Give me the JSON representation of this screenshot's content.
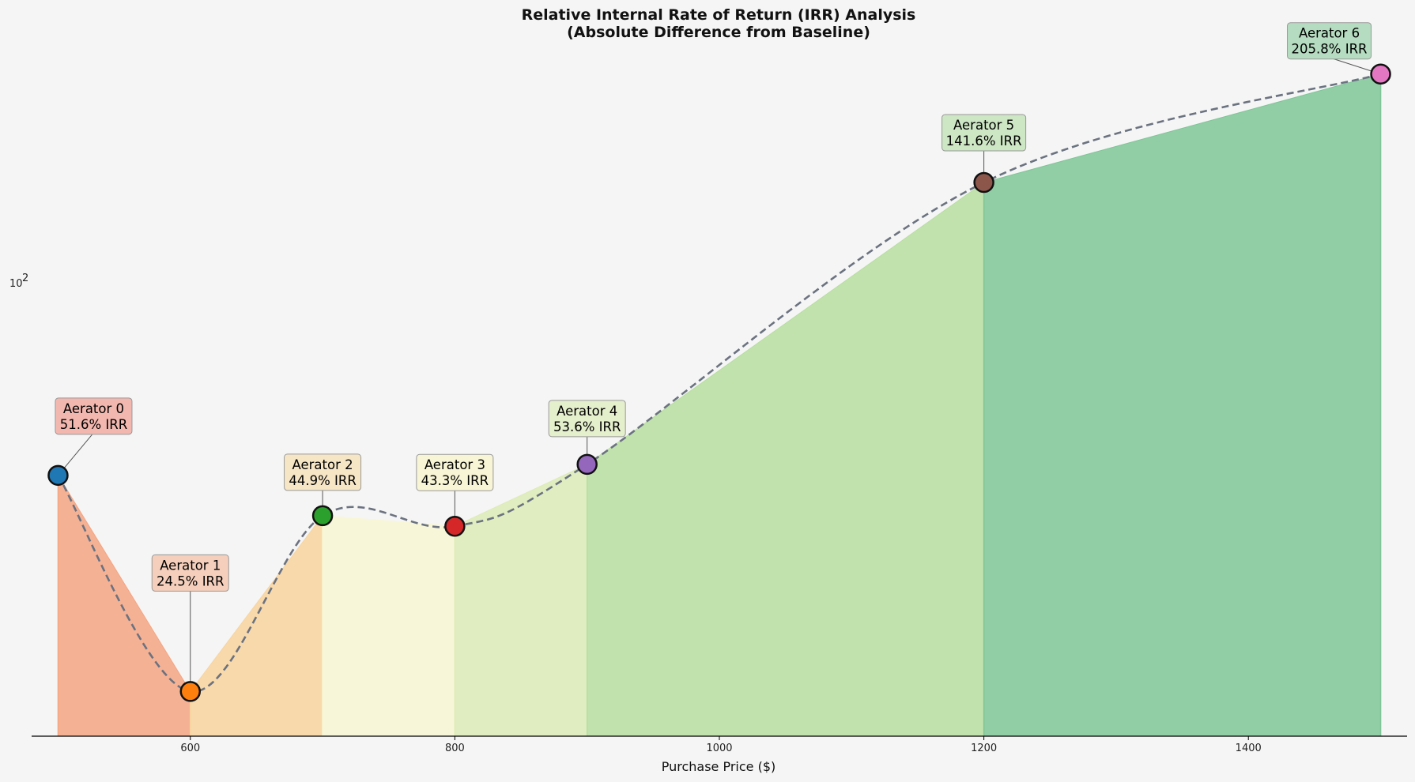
{
  "chart_data": {
    "type": "area",
    "title": "Relative Internal Rate of Return (IRR) Analysis",
    "subtitle": "(Absolute Difference from Baseline)",
    "xlabel": "Purchase Price ($)",
    "ylabel": "",
    "yscale": "log",
    "xlim": [
      480,
      1520
    ],
    "ylim": [
      21,
      235
    ],
    "x_ticks": [
      600,
      800,
      1000,
      1200,
      1400
    ],
    "x_tick_labels": [
      "600",
      "800",
      "1000",
      "1200",
      "1400"
    ],
    "y_tick": 100,
    "y_tick_label": "10",
    "y_tick_exponent": "2",
    "x": [
      500,
      600,
      700,
      800,
      900,
      1200,
      1500
    ],
    "values": [
      51.6,
      24.5,
      44.9,
      43.3,
      53.6,
      141.6,
      205.8
    ],
    "trend_line": "dashed smooth curve through points",
    "grid": false,
    "points": [
      {
        "label": "Aerator 0",
        "irr_text": "51.6% IRR",
        "color": "#1f77b4",
        "fill_color": "#f4a582",
        "box_color": "#f2b8b0"
      },
      {
        "label": "Aerator 1",
        "irr_text": "24.5% IRR",
        "color": "#ff7f0e",
        "fill_color": "#f8d49e",
        "box_color": "#f5cfbc"
      },
      {
        "label": "Aerator 2",
        "irr_text": "44.9% IRR",
        "color": "#2ca02c",
        "fill_color": "#f8f6d4",
        "box_color": "#f7e6c6"
      },
      {
        "label": "Aerator 3",
        "irr_text": "43.3% IRR",
        "color": "#d62728",
        "fill_color": "#dcebb6",
        "box_color": "#f8f5d6"
      },
      {
        "label": "Aerator 4",
        "irr_text": "53.6% IRR",
        "color": "#9467bd",
        "fill_color": "#b7dea0",
        "box_color": "#e4efcc"
      },
      {
        "label": "Aerator 5",
        "irr_text": "141.6% IRR",
        "color": "#8c564b",
        "fill_color": "#7fc596",
        "box_color": "#cde6c4"
      },
      {
        "label": "Aerator 6",
        "irr_text": "205.8% IRR",
        "color": "#e377c2",
        "fill_color": "#7fc596",
        "box_color": "#b5dcc0"
      }
    ],
    "line_color": "#6b7280"
  }
}
